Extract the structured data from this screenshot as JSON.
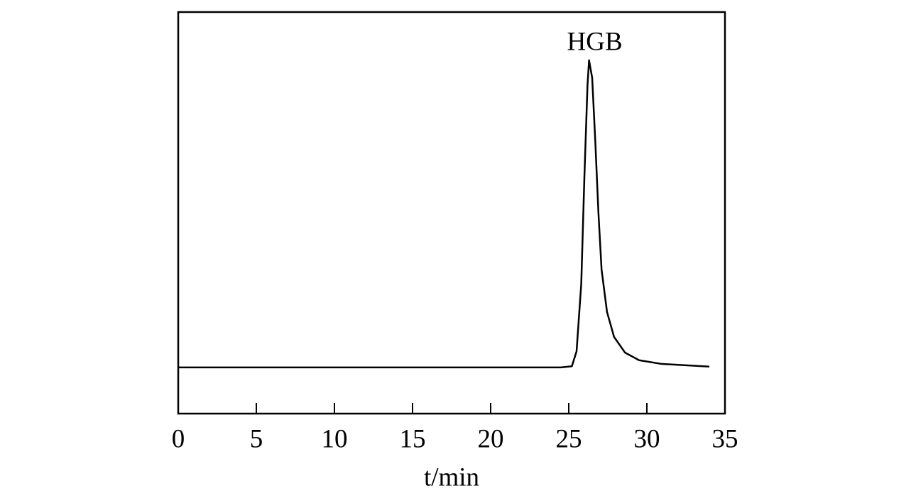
{
  "chart_data": {
    "type": "line",
    "xlabel": "t/min",
    "annotation": {
      "text": "HGB",
      "x": 26.3
    },
    "x": [
      0,
      5,
      10,
      15,
      20,
      24.5,
      25.2,
      25.5,
      25.8,
      26.0,
      26.2,
      26.3,
      26.5,
      26.7,
      26.9,
      27.1,
      27.45,
      27.9,
      28.6,
      29.5,
      30.9,
      32.7,
      34.0
    ],
    "series": [
      {
        "color": "#000000",
        "values": [
          11.5,
          11.5,
          11.5,
          11.5,
          11.5,
          11.5,
          11.8,
          15.5,
          32.3,
          58.8,
          81.8,
          88.0,
          83.6,
          67.7,
          50.0,
          35.9,
          25.3,
          19.1,
          15.2,
          13.3,
          12.4,
          12.0,
          11.7
        ]
      }
    ],
    "xlim": [
      0,
      35
    ],
    "xticks": [
      0,
      5,
      10,
      15,
      20,
      25,
      30,
      35
    ],
    "ylim": [
      0,
      100
    ]
  }
}
